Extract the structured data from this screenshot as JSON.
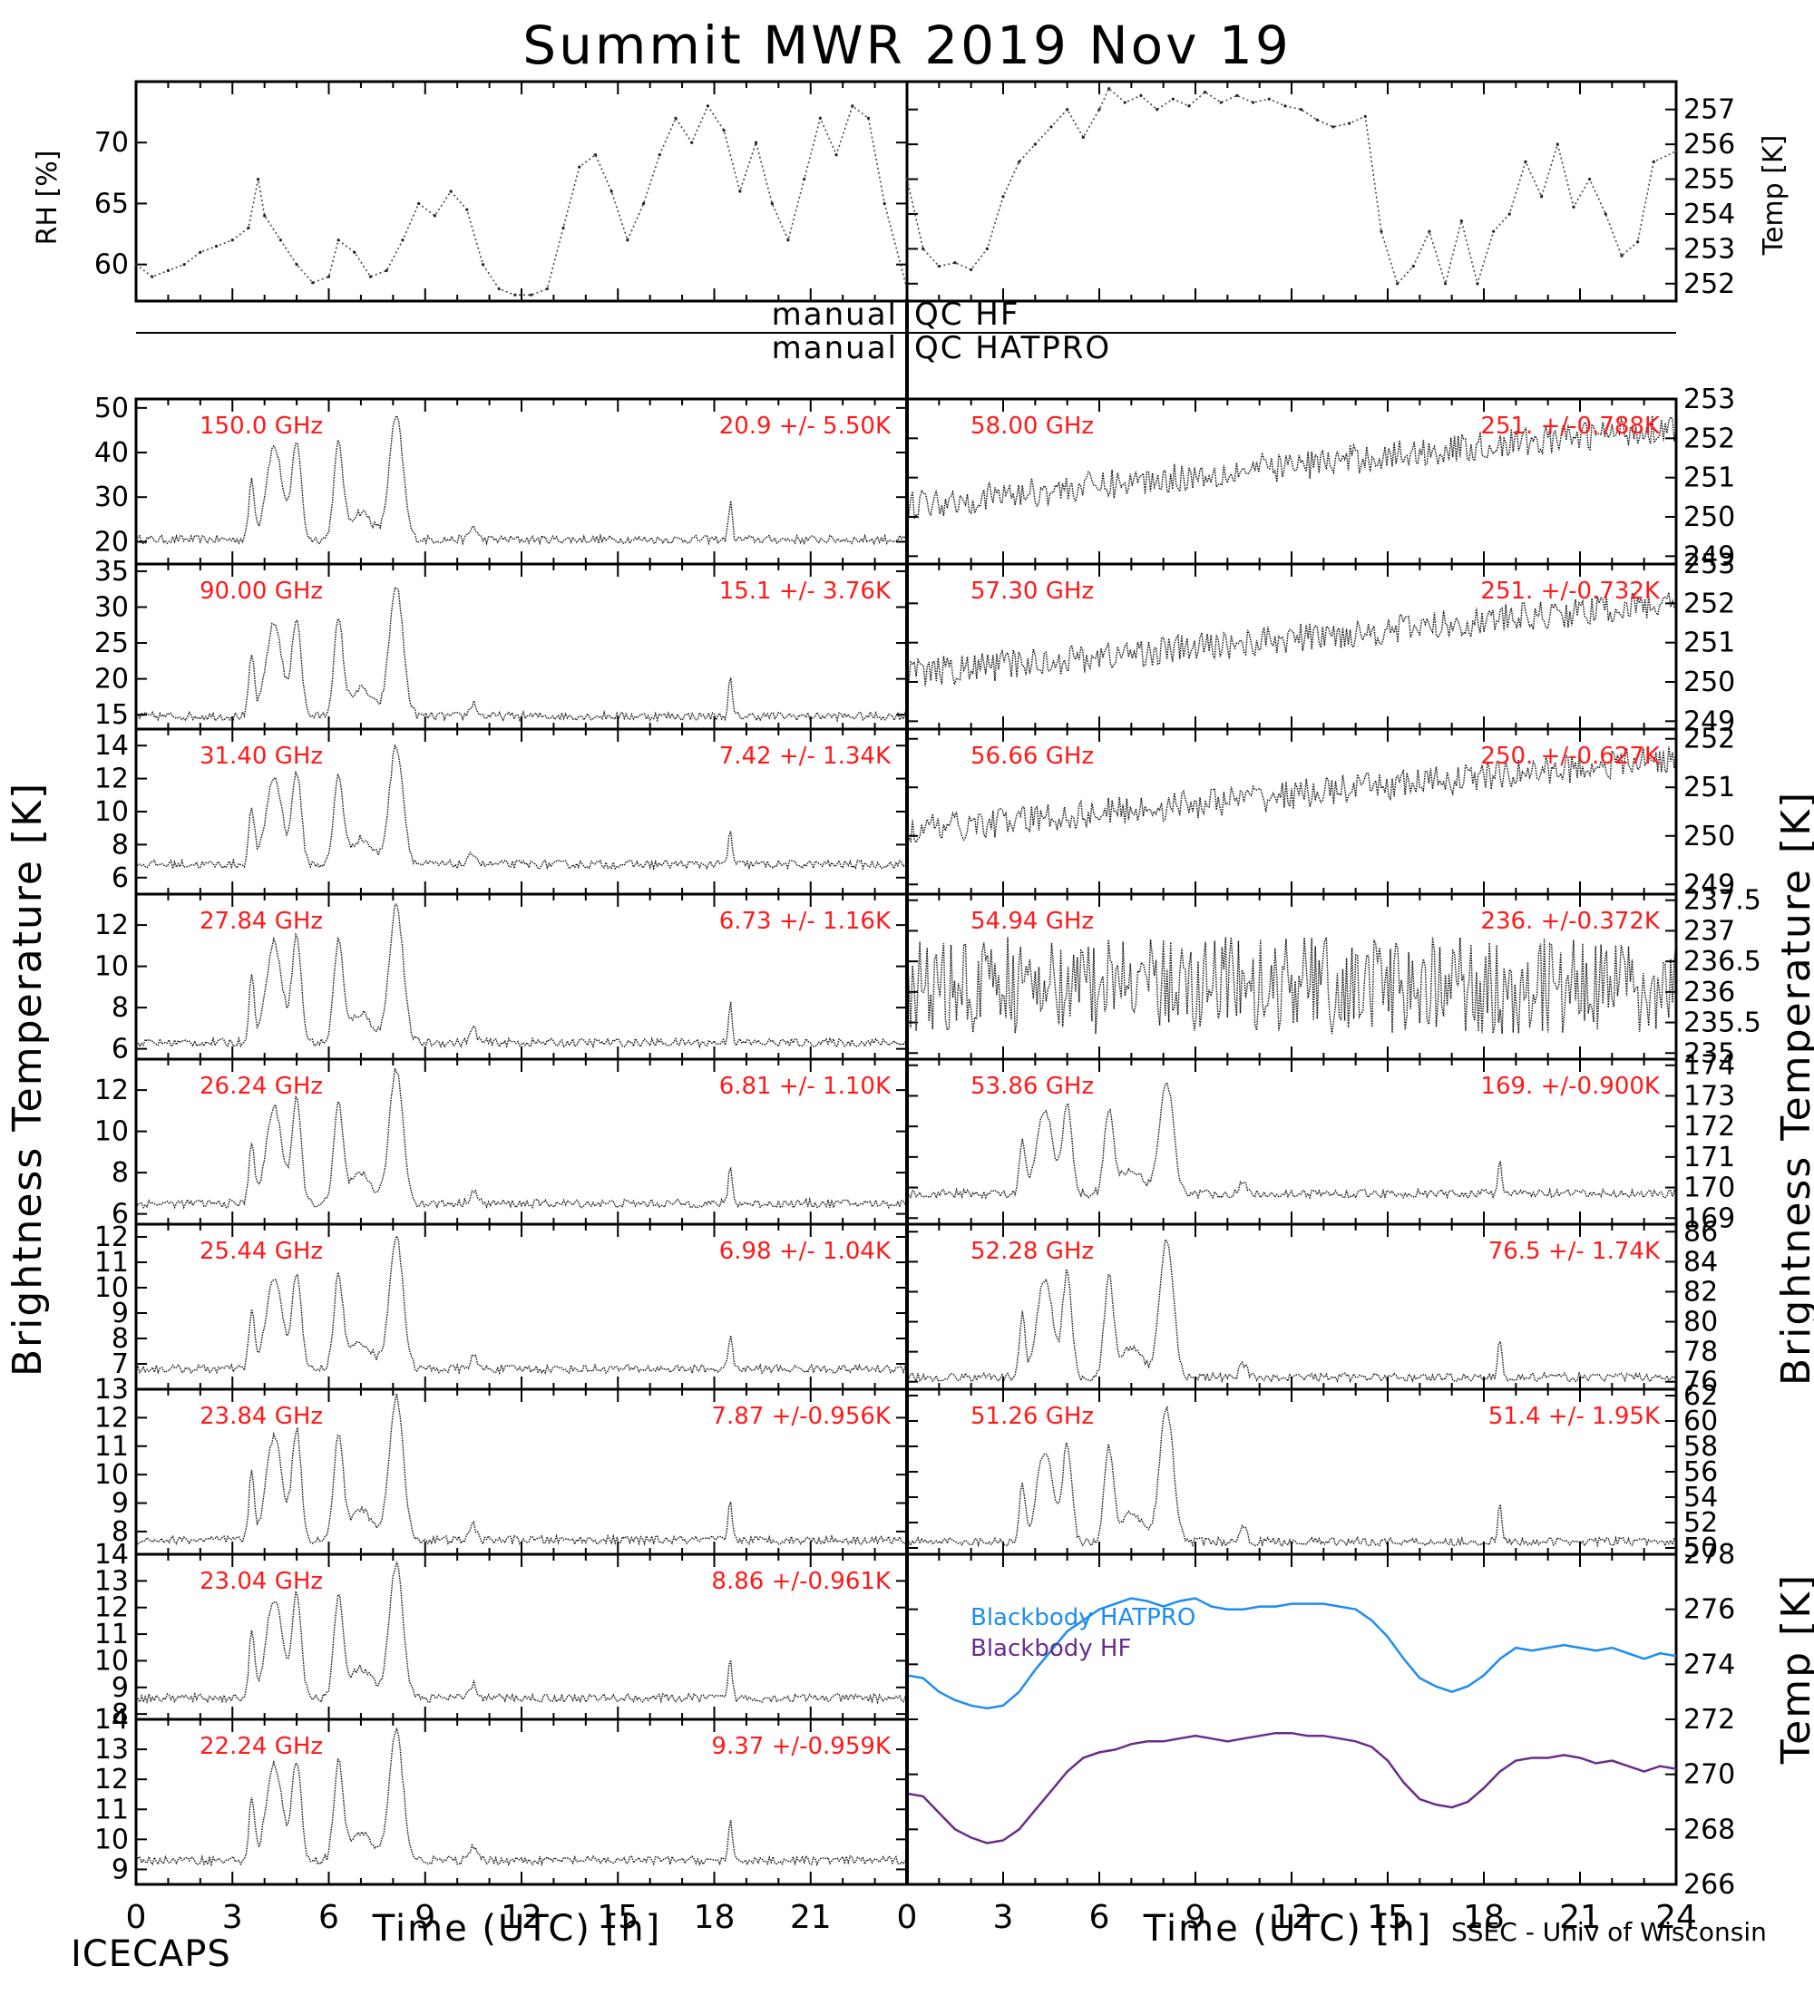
{
  "title": "Summit MWR 2019 Nov 19",
  "footer": {
    "left": "ICECAPS",
    "right": "SSEC - Univ of Wisconsin"
  },
  "qc": {
    "hf_left": "manual",
    "hf_right": "QC HF",
    "hatpro_left": "manual",
    "hatpro_right": "QC HATPRO"
  },
  "axis_labels": {
    "x_left": "Time (UTC) [h]",
    "x_right": "Time (UTC) [h]",
    "y_left": "Brightness Temperature [K]",
    "y_right": "Brightness Temperature [K]",
    "rh": "RH [%]",
    "temp_top": "Temp [K]",
    "temp_bottom": "Temp [K]"
  },
  "x_ticks": [
    "0",
    "3",
    "6",
    "9",
    "12",
    "15",
    "18",
    "21",
    "24"
  ],
  "chart_data": [
    {
      "type": "scatter",
      "id": "rh",
      "ylabel": "RH [%]",
      "xlim": [
        0,
        24
      ],
      "ylim": [
        57,
        75
      ],
      "yticks": [
        60,
        65,
        70
      ],
      "x": [
        0,
        0.5,
        1,
        1.5,
        2,
        2.5,
        3,
        3.5,
        3.8,
        4,
        4.5,
        5,
        5.5,
        6,
        6.3,
        6.8,
        7.3,
        7.8,
        8.3,
        8.8,
        9.3,
        9.8,
        10.3,
        10.8,
        11.3,
        11.8,
        12.3,
        12.8,
        13.3,
        13.8,
        14.3,
        14.8,
        15.3,
        15.8,
        16.3,
        16.8,
        17.3,
        17.8,
        18.3,
        18.8,
        19.3,
        19.8,
        20.3,
        20.8,
        21.3,
        21.8,
        22.3,
        22.8,
        23.3,
        24
      ],
      "y": [
        60,
        59,
        59.5,
        60,
        61,
        61.5,
        62,
        63,
        67,
        64,
        62,
        60,
        58.5,
        59,
        62,
        61,
        59,
        59.5,
        62,
        65,
        64,
        66,
        64.5,
        60,
        58,
        57.5,
        57.5,
        58,
        63,
        68,
        69,
        66,
        62,
        65,
        69,
        72,
        70,
        73,
        71,
        66,
        70,
        65,
        62,
        67,
        72,
        69,
        73,
        72,
        65,
        58
      ]
    },
    {
      "type": "scatter",
      "id": "temp",
      "ylabel": "Temp [K]",
      "xlim": [
        0,
        24
      ],
      "ylim": [
        251.5,
        257.8
      ],
      "yticks": [
        252,
        253,
        254,
        255,
        256,
        257
      ],
      "x": [
        0,
        0.5,
        1,
        1.5,
        2,
        2.5,
        3,
        3.5,
        4,
        4.5,
        5,
        5.5,
        6,
        6.3,
        6.8,
        7.3,
        7.8,
        8.3,
        8.8,
        9.3,
        9.8,
        10.3,
        10.8,
        11.3,
        11.8,
        12.3,
        12.8,
        13.3,
        13.8,
        14.3,
        14.8,
        15.3,
        15.8,
        16.3,
        16.8,
        17.3,
        17.8,
        18.3,
        18.8,
        19.3,
        19.8,
        20.3,
        20.8,
        21.3,
        21.8,
        22.3,
        22.8,
        23.3,
        24
      ],
      "y": [
        255,
        253,
        252.5,
        252.6,
        252.4,
        253,
        254.5,
        255.5,
        256,
        256.5,
        257,
        256.2,
        257,
        257.6,
        257.2,
        257.4,
        257,
        257.3,
        257.1,
        257.5,
        257.2,
        257.4,
        257.2,
        257.3,
        257.1,
        257,
        256.7,
        256.5,
        256.6,
        256.8,
        253.5,
        252,
        252.5,
        253.5,
        252,
        253.8,
        252,
        253.5,
        254,
        255.5,
        254.5,
        256,
        254.2,
        255,
        254,
        252.8,
        253.2,
        255.5,
        255.8
      ]
    },
    {
      "type": "scatter",
      "id": "ch150",
      "label": "150.0 GHz",
      "stats": "20.9 +/-  5.50K",
      "ylim": [
        15,
        52
      ],
      "yticks": [
        20,
        30,
        40,
        50
      ],
      "base": 20.5,
      "peak": 45,
      "peak2": 48,
      "side": "left"
    },
    {
      "type": "scatter",
      "id": "ch90",
      "label": "90.00 GHz",
      "stats": "15.1 +/-  3.76K",
      "ylim": [
        13,
        36
      ],
      "yticks": [
        15,
        20,
        25,
        30,
        35
      ],
      "base": 14.8,
      "peak": 30,
      "peak2": 33,
      "side": "left"
    },
    {
      "type": "scatter",
      "id": "ch314",
      "label": "31.40 GHz",
      "stats": "7.42 +/- 1.34K",
      "ylim": [
        5,
        15
      ],
      "yticks": [
        6,
        8,
        10,
        12,
        14
      ],
      "base": 6.8,
      "peak": 13,
      "peak2": 14,
      "side": "left"
    },
    {
      "type": "scatter",
      "id": "ch2784",
      "label": "27.84 GHz",
      "stats": "6.73 +/- 1.16K",
      "ylim": [
        5.5,
        13.5
      ],
      "yticks": [
        6,
        8,
        10,
        12
      ],
      "base": 6.3,
      "peak": 12,
      "peak2": 13,
      "side": "left"
    },
    {
      "type": "scatter",
      "id": "ch2624",
      "label": "26.24 GHz",
      "stats": "6.81 +/- 1.10K",
      "ylim": [
        5.5,
        13.5
      ],
      "yticks": [
        6,
        8,
        10,
        12
      ],
      "base": 6.5,
      "peak": 12,
      "peak2": 13,
      "side": "left"
    },
    {
      "type": "scatter",
      "id": "ch2544",
      "label": "25.44 GHz",
      "stats": "6.98 +/- 1.04K",
      "ylim": [
        6,
        12.5
      ],
      "yticks": [
        7,
        8,
        9,
        10,
        11,
        12
      ],
      "base": 6.8,
      "peak": 11,
      "peak2": 12,
      "side": "left"
    },
    {
      "type": "scatter",
      "id": "ch2384",
      "label": "23.84 GHz",
      "stats": "7.87 +/-0.956K",
      "ylim": [
        7.2,
        13
      ],
      "yticks": [
        8,
        9,
        10,
        11,
        12,
        13
      ],
      "base": 7.7,
      "peak": 12,
      "peak2": 12.8,
      "side": "left"
    },
    {
      "type": "scatter",
      "id": "ch2304",
      "label": "23.04 GHz",
      "stats": "8.86 +/-0.961K",
      "ylim": [
        7.8,
        14
      ],
      "yticks": [
        8,
        9,
        10,
        11,
        12,
        13,
        14
      ],
      "base": 8.6,
      "peak": 13,
      "peak2": 13.6,
      "side": "left"
    },
    {
      "type": "scatter",
      "id": "ch2224",
      "label": "22.24 GHz",
      "stats": "9.37 +/-0.959K",
      "ylim": [
        8.5,
        14
      ],
      "yticks": [
        9,
        10,
        11,
        12,
        13,
        14
      ],
      "base": 9.3,
      "peak": 13,
      "peak2": 13.6,
      "side": "left"
    },
    {
      "type": "scatter",
      "id": "ch5800",
      "label": "58.00 GHz",
      "stats": "251. +/-0.788K",
      "ylim": [
        248.8,
        253
      ],
      "yticks": [
        249,
        250,
        251,
        252,
        253
      ],
      "base": 250.3,
      "trend": 2.0,
      "side": "right"
    },
    {
      "type": "scatter",
      "id": "ch5730",
      "label": "57.30 GHz",
      "stats": "251. +/-0.732K",
      "ylim": [
        248.8,
        253
      ],
      "yticks": [
        249,
        250,
        251,
        252,
        253
      ],
      "base": 250.2,
      "trend": 1.8,
      "side": "right"
    },
    {
      "type": "scatter",
      "id": "ch5666",
      "label": "56.66 GHz",
      "stats": "250. +/-0.627K",
      "ylim": [
        248.8,
        252.2
      ],
      "yticks": [
        249,
        250,
        251,
        252
      ],
      "base": 250.1,
      "trend": 1.5,
      "side": "right"
    },
    {
      "type": "scatter",
      "id": "ch5494",
      "label": "54.94 GHz",
      "stats": "236. +/-0.372K",
      "ylim": [
        234.9,
        237.6
      ],
      "yticks": [
        235.0,
        235.5,
        236.0,
        236.5,
        237.0,
        237.5
      ],
      "base": 236.1,
      "trend": 0.0,
      "side": "right"
    },
    {
      "type": "scatter",
      "id": "ch5386",
      "label": "53.86 GHz",
      "stats": "169. +/-0.900K",
      "ylim": [
        168.8,
        174.2
      ],
      "yticks": [
        169,
        170,
        171,
        172,
        173,
        174
      ],
      "base": 169.8,
      "peak": 173,
      "peak2": 173.5,
      "side": "right"
    },
    {
      "type": "scatter",
      "id": "ch5228",
      "label": "52.28 GHz",
      "stats": "76.5 +/- 1.74K",
      "ylim": [
        75.5,
        86.5
      ],
      "yticks": [
        76,
        78,
        80,
        82,
        84,
        86
      ],
      "base": 76.3,
      "peak": 84,
      "peak2": 85.5,
      "side": "right"
    },
    {
      "type": "scatter",
      "id": "ch5126",
      "label": "51.26 GHz",
      "stats": "51.4 +/- 1.95K",
      "ylim": [
        49.5,
        62.5
      ],
      "yticks": [
        50,
        52,
        54,
        56,
        58,
        60,
        62
      ],
      "base": 50.5,
      "peak": 59,
      "peak2": 61,
      "side": "right"
    },
    {
      "type": "line",
      "id": "blackbody",
      "ylabel": "Temp [K]",
      "xlim": [
        0,
        24
      ],
      "ylim": [
        266,
        278
      ],
      "yticks": [
        266,
        268,
        270,
        272,
        274,
        276,
        278
      ],
      "series": [
        {
          "name": "Blackbody HATPRO",
          "color": "#1e8cf0",
          "x": [
            0,
            0.5,
            1,
            1.5,
            2,
            2.5,
            3,
            3.5,
            4,
            4.5,
            5,
            5.5,
            6,
            6.5,
            7,
            7.5,
            8,
            8.5,
            9,
            9.5,
            10,
            10.5,
            11,
            11.5,
            12,
            12.5,
            13,
            13.5,
            14,
            14.5,
            15,
            15.5,
            16,
            16.5,
            17,
            17.5,
            18,
            18.5,
            19,
            19.5,
            20,
            20.5,
            21,
            21.5,
            22,
            22.5,
            23,
            23.5,
            24
          ],
          "y": [
            273.6,
            273.5,
            273.0,
            272.7,
            272.5,
            272.4,
            272.5,
            273.0,
            273.8,
            274.5,
            275.2,
            275.6,
            276.0,
            276.2,
            276.4,
            276.3,
            276.1,
            276.3,
            276.4,
            276.1,
            276.0,
            276.0,
            276.1,
            276.1,
            276.2,
            276.2,
            276.2,
            276.1,
            276.0,
            275.6,
            275.0,
            274.2,
            273.5,
            273.2,
            273.0,
            273.2,
            273.6,
            274.2,
            274.6,
            274.5,
            274.6,
            274.7,
            274.6,
            274.5,
            274.6,
            274.4,
            274.2,
            274.4,
            274.3
          ]
        },
        {
          "name": "Blackbody HF",
          "color": "#6a2c8c",
          "x": [
            0,
            0.5,
            1,
            1.5,
            2,
            2.5,
            3,
            3.5,
            4,
            4.5,
            5,
            5.5,
            6,
            6.5,
            7,
            7.5,
            8,
            8.5,
            9,
            9.5,
            10,
            10.5,
            11,
            11.5,
            12,
            12.5,
            13,
            13.5,
            14,
            14.5,
            15,
            15.5,
            16,
            16.5,
            17,
            17.5,
            18,
            18.5,
            19,
            19.5,
            20,
            20.5,
            21,
            21.5,
            22,
            22.5,
            23,
            23.5,
            24
          ],
          "y": [
            269.3,
            269.2,
            268.6,
            268.0,
            267.7,
            267.5,
            267.6,
            268.0,
            268.7,
            269.4,
            270.1,
            270.6,
            270.8,
            270.9,
            271.1,
            271.2,
            271.2,
            271.3,
            271.4,
            271.3,
            271.2,
            271.3,
            271.4,
            271.5,
            271.5,
            271.4,
            271.4,
            271.3,
            271.2,
            271.0,
            270.5,
            269.7,
            269.1,
            268.9,
            268.8,
            269.0,
            269.5,
            270.1,
            270.5,
            270.6,
            270.6,
            270.7,
            270.6,
            270.4,
            270.5,
            270.3,
            270.1,
            270.3,
            270.2
          ]
        }
      ]
    }
  ]
}
